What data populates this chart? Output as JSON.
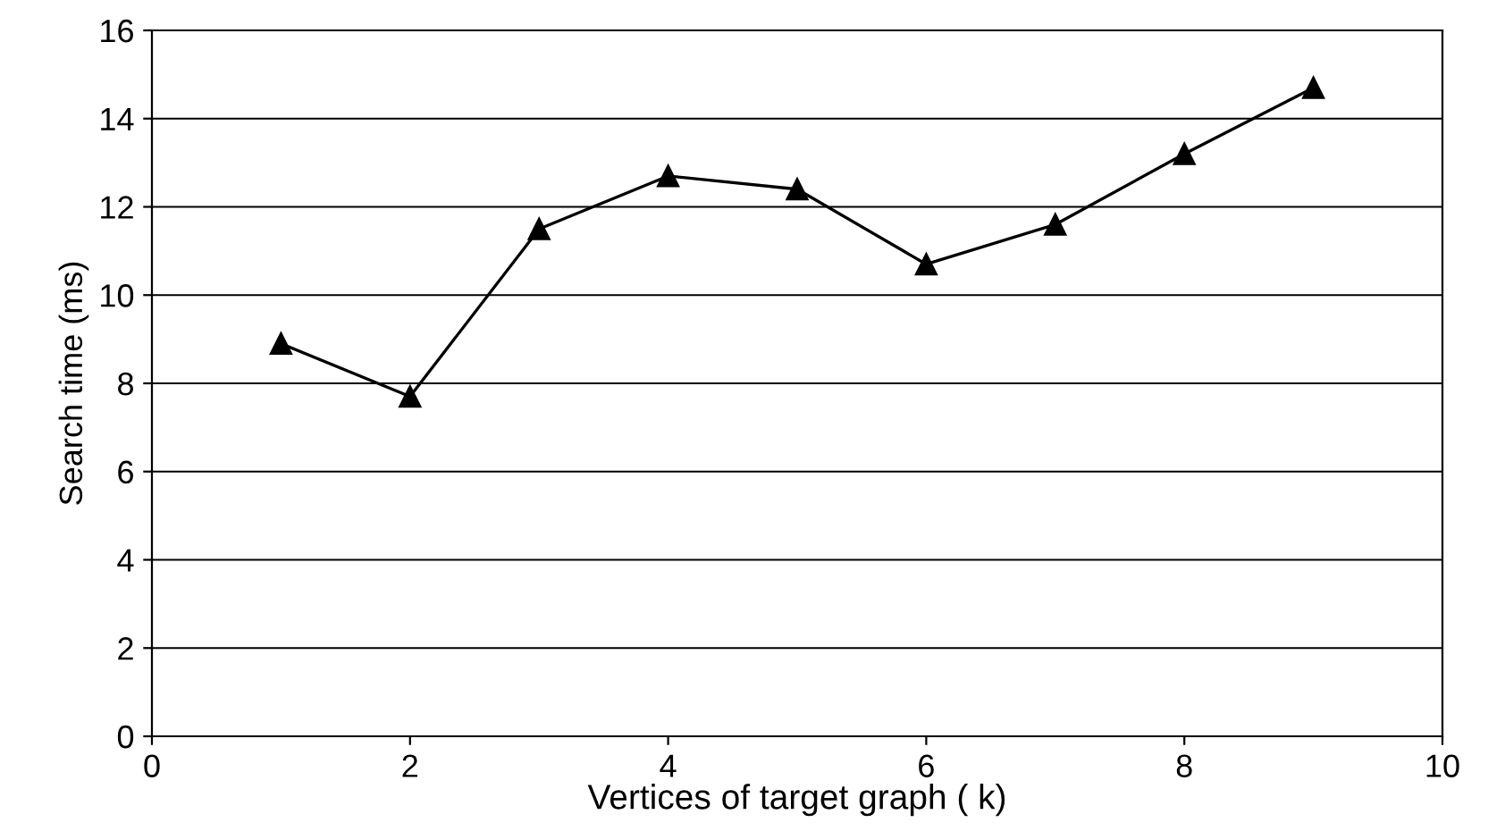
{
  "chart_data": {
    "type": "line",
    "xlabel": "Vertices of target graph ( k)",
    "ylabel": "Search time (ms)",
    "x": [
      1,
      2,
      3,
      4,
      5,
      6,
      7,
      8,
      9
    ],
    "series": [
      {
        "color": "#000000",
        "values": [
          8.9,
          7.7,
          11.5,
          12.7,
          12.4,
          10.7,
          11.6,
          13.2,
          14.7
        ]
      }
    ],
    "xlim": [
      0,
      10
    ],
    "xticks": [
      0,
      2,
      4,
      6,
      8,
      10
    ],
    "ylim": [
      0,
      16
    ],
    "yticks": [
      0,
      2,
      4,
      6,
      8,
      10,
      12,
      14,
      16
    ],
    "grid": "y",
    "marker": "triangle",
    "line_style": "solid"
  }
}
